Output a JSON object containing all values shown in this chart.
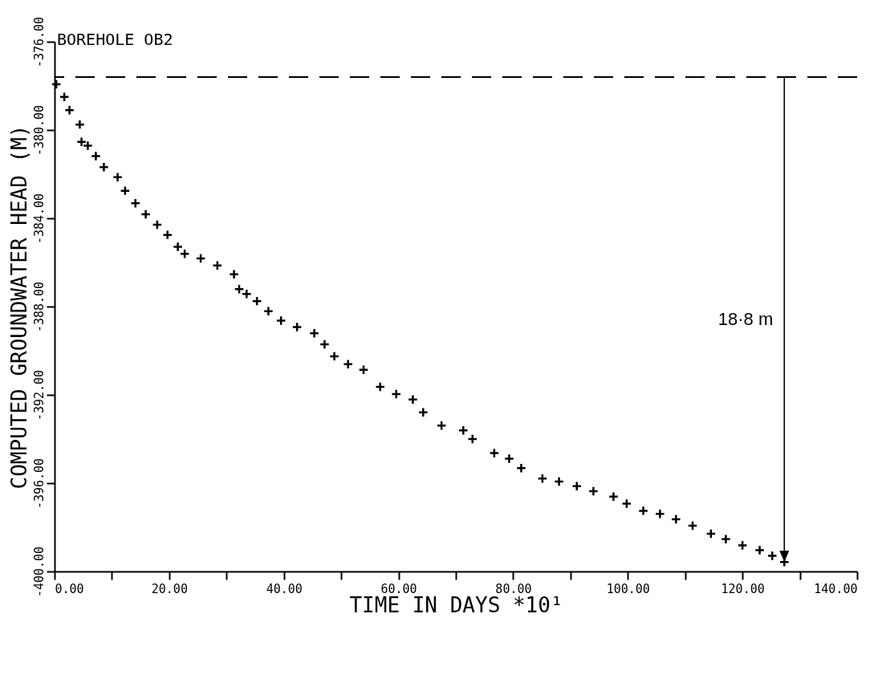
{
  "chart_data": {
    "type": "scatter",
    "title": "BOREHOLE OB2",
    "xlabel": "TIME IN DAYS *10¹",
    "ylabel": "COMPUTED GROUNDWATER HEAD (M)",
    "x": [
      0.3,
      1.7,
      2.6,
      4.4,
      4.7,
      5.8,
      7.2,
      8.6,
      11.0,
      12.3,
      14.1,
      15.9,
      17.9,
      19.7,
      21.5,
      22.7,
      25.5,
      28.4,
      31.3,
      32.2,
      33.5,
      35.3,
      37.3,
      39.5,
      42.3,
      45.3,
      47.1,
      48.8,
      51.2,
      53.9,
      56.8,
      59.6,
      62.5,
      64.3,
      67.5,
      71.3,
      72.9,
      76.7,
      79.3,
      81.4,
      85.1,
      88.0,
      91.1,
      94.0,
      97.5,
      99.8,
      102.7,
      105.6,
      108.4,
      111.3,
      114.5,
      117.1,
      120.0,
      123.0,
      125.2,
      127.3
    ],
    "series": [
      {
        "color": "#000000",
        "values": [
          -377.93,
          -378.5,
          -379.1,
          -379.75,
          -380.54,
          -380.71,
          -381.18,
          -381.68,
          -382.14,
          -382.75,
          -383.32,
          -383.82,
          -384.29,
          -384.75,
          -385.29,
          -385.61,
          -385.82,
          -386.14,
          -386.54,
          -387.21,
          -387.43,
          -387.75,
          -388.21,
          -388.64,
          -388.93,
          -389.21,
          -389.71,
          -390.25,
          -390.61,
          -390.86,
          -391.64,
          -391.96,
          -392.21,
          -392.79,
          -393.39,
          -393.61,
          -394.0,
          -394.64,
          -394.89,
          -395.32,
          -395.79,
          -395.93,
          -396.14,
          -396.36,
          -396.61,
          -396.93,
          -397.25,
          -397.39,
          -397.64,
          -397.93,
          -398.29,
          -398.54,
          -398.82,
          -399.04,
          -399.29,
          -399.57
        ]
      }
    ],
    "marker": "cross",
    "xlim": [
      0,
      140
    ],
    "xticks": [
      {
        "value": 0,
        "label": "0.00"
      },
      {
        "value": 10,
        "label": null
      },
      {
        "value": 20,
        "label": "20.00"
      },
      {
        "value": 30,
        "label": null
      },
      {
        "value": 40,
        "label": "40.00"
      },
      {
        "value": 50,
        "label": null
      },
      {
        "value": 60,
        "label": "60.00"
      },
      {
        "value": 70,
        "label": null
      },
      {
        "value": 80,
        "label": "80.00"
      },
      {
        "value": 90,
        "label": null
      },
      {
        "value": 100,
        "label": "100.00"
      },
      {
        "value": 110,
        "label": null
      },
      {
        "value": 120,
        "label": "120.00"
      },
      {
        "value": 130,
        "label": null
      },
      {
        "value": 140,
        "label": "140.00"
      }
    ],
    "ylim": [
      -400,
      -376
    ],
    "yticks": [
      {
        "value": -376,
        "label": "-376.00"
      },
      {
        "value": -380,
        "label": "-380.00"
      },
      {
        "value": -384,
        "label": "-384.00"
      },
      {
        "value": -388,
        "label": "-388.00"
      },
      {
        "value": -392,
        "label": "-392.00"
      },
      {
        "value": -396,
        "label": "-396.00"
      },
      {
        "value": -400,
        "label": "-400.00"
      }
    ],
    "ref_lines": [
      {
        "axis": "y",
        "value": -377.6,
        "line_style": "dashed",
        "color": "#000000"
      }
    ],
    "annotations": [
      "18·8 m"
    ],
    "grid": false
  }
}
